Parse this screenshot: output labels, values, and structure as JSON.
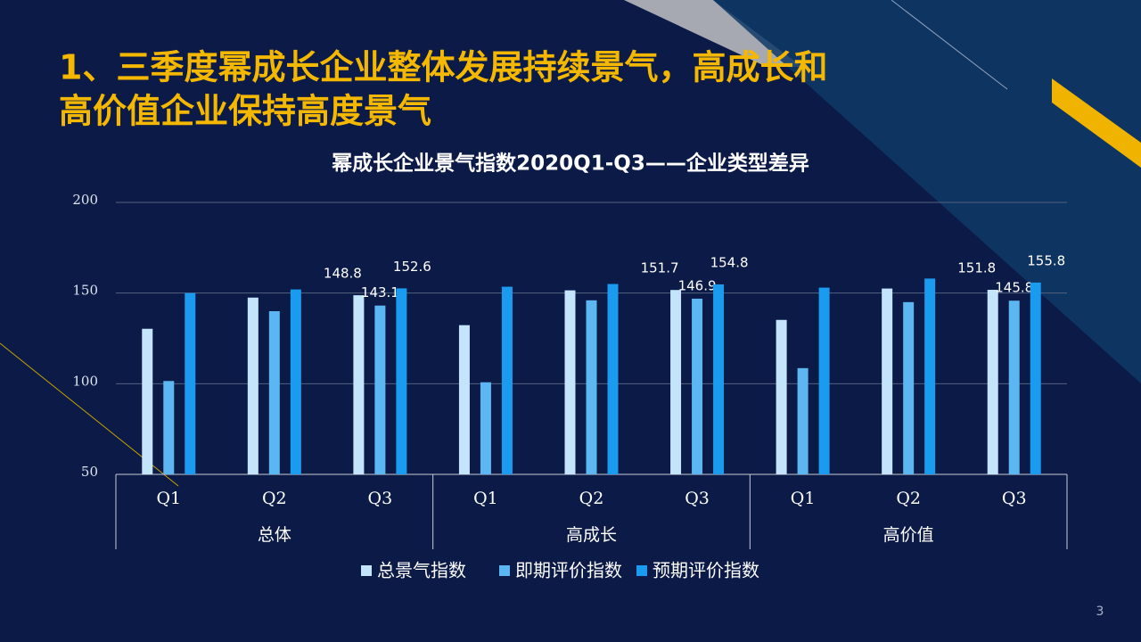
{
  "header": {
    "title_lines": [
      "1、三季度幂成长企业整体发展持续景气，高成长和",
      "高价值企业保持高度景气"
    ]
  },
  "page_number": "3",
  "chart_data": {
    "type": "bar",
    "title": "幂成长企业景气指数2020Q1-Q3——企业类型差异",
    "categories": [
      "Q1",
      "Q2",
      "Q3",
      "Q1",
      "Q2",
      "Q3",
      "Q1",
      "Q2",
      "Q3"
    ],
    "groups": [
      "总体",
      "高成长",
      "高价值"
    ],
    "series": [
      {
        "name": "总景气指数",
        "color": "#c3e4fa",
        "values": [
          130.3,
          147.5,
          148.8,
          132.3,
          151.5,
          151.7,
          135.2,
          152.5,
          151.8
        ],
        "value_labels": [
          null,
          null,
          "148.8",
          null,
          null,
          "151.7",
          null,
          null,
          "151.8"
        ]
      },
      {
        "name": "即期评价指数",
        "color": "#5cb6f2",
        "values": [
          101.5,
          140.0,
          143.1,
          100.8,
          146.0,
          146.9,
          108.6,
          145.0,
          145.8
        ],
        "value_labels": [
          null,
          null,
          "143.1",
          null,
          null,
          "146.9",
          null,
          null,
          "145.8"
        ]
      },
      {
        "name": "预期评价指数",
        "color": "#1a9bf0",
        "values": [
          150.0,
          152.0,
          152.6,
          153.5,
          155.0,
          154.8,
          153.0,
          158.0,
          155.8
        ],
        "value_labels": [
          null,
          null,
          "152.6",
          null,
          null,
          "154.8",
          null,
          null,
          "155.8"
        ]
      }
    ],
    "ylim": [
      50,
      200
    ],
    "yticks": [
      50,
      100,
      150,
      200
    ],
    "grid": true
  }
}
